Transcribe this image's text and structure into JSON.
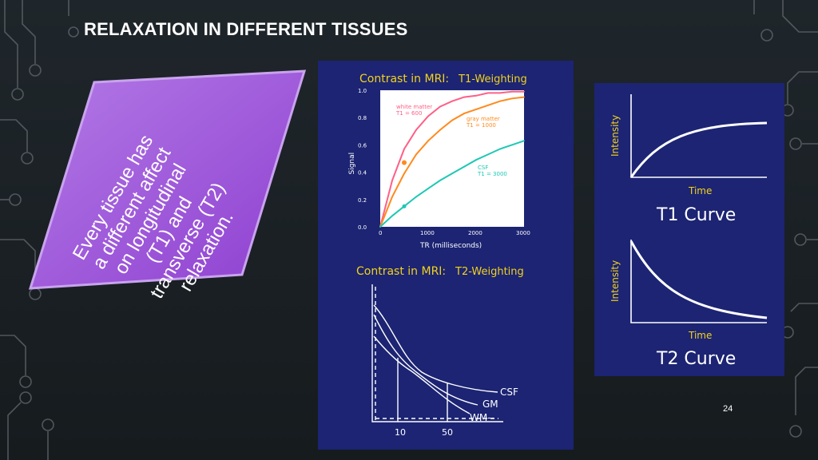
{
  "slide": {
    "title": "RELAXATION IN DIFFERENT TISSUES",
    "callout_lines": [
      "Every tissue has",
      "a different affect",
      "on longitudinal",
      "(T1) and",
      "transverse (T2)",
      "relaxation."
    ],
    "page_number": "24",
    "colors": {
      "callout_fill": "#a35fd9",
      "panel_bg": "#1c2473",
      "heading_yellow": "#f2d21b"
    }
  },
  "t1_panel": {
    "heading_prefix": "Contrast in MRI:",
    "heading_suffix": "T1-Weighting",
    "ylabel": "Signal",
    "xlabel": "TR (milliseconds)",
    "yticks": [
      "1.0",
      "0.8",
      "0.6",
      "0.4",
      "0.2",
      "0.0"
    ],
    "xticks": [
      "0",
      "1000",
      "2000",
      "3000"
    ],
    "labels": {
      "white_matter": [
        "white matter",
        "T1 = 600"
      ],
      "gray_matter": [
        "gray matter",
        "T1 = 1000"
      ],
      "csf": [
        "CSF",
        "T1 = 3000"
      ]
    }
  },
  "t2_panel": {
    "heading_prefix": "Contrast in MRI:",
    "heading_suffix": "T2-Weighting",
    "series_labels": [
      "CSF",
      "GM",
      "WM--"
    ],
    "xticks": [
      "10",
      "50"
    ]
  },
  "curves_panel": {
    "t1": {
      "ylabel": "Intensity",
      "xlabel": "Time",
      "caption": "T1 Curve"
    },
    "t2": {
      "ylabel": "Intensity",
      "xlabel": "Time",
      "caption": "T2 Curve"
    }
  },
  "chart_data": [
    {
      "type": "line",
      "title": "Contrast in MRI: T1-Weighting",
      "xlabel": "TR (milliseconds)",
      "ylabel": "Signal",
      "xlim": [
        0,
        3000
      ],
      "ylim": [
        0,
        1.0
      ],
      "x": [
        0,
        250,
        500,
        750,
        1000,
        1250,
        1500,
        1750,
        2000,
        2250,
        2500,
        2750,
        3000
      ],
      "series": [
        {
          "name": "white matter T1 = 600",
          "color": "#ff5f86",
          "values": [
            0.0,
            0.34,
            0.57,
            0.71,
            0.81,
            0.88,
            0.92,
            0.95,
            0.96,
            0.98,
            0.98,
            0.99,
            0.99
          ]
        },
        {
          "name": "gray matter T1 = 1000",
          "color": "#ff8a1e",
          "values": [
            0.0,
            0.22,
            0.39,
            0.53,
            0.63,
            0.71,
            0.78,
            0.83,
            0.86,
            0.89,
            0.92,
            0.94,
            0.95
          ]
        },
        {
          "name": "CSF T1 = 3000",
          "color": "#1ec8b4",
          "values": [
            0.0,
            0.08,
            0.15,
            0.22,
            0.28,
            0.34,
            0.39,
            0.44,
            0.49,
            0.53,
            0.57,
            0.6,
            0.63
          ]
        }
      ]
    }
  ]
}
